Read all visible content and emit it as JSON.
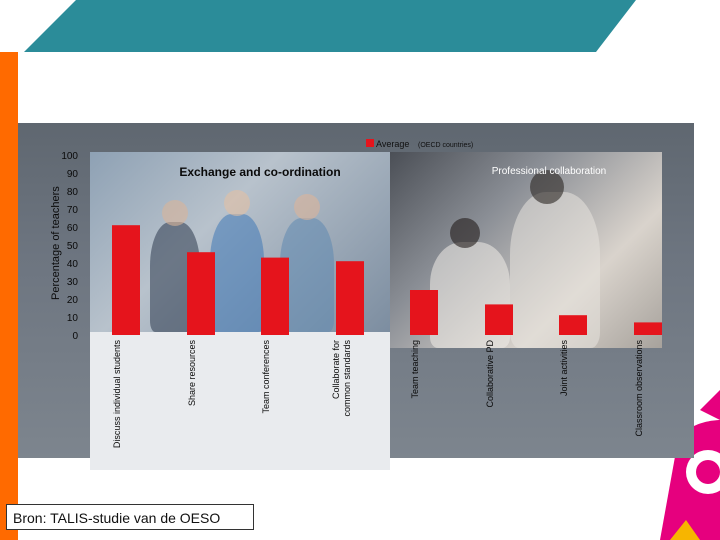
{
  "slide": {
    "source_text": "Bron: TALIS-studie van de OESO",
    "colors": {
      "top_band": "#2b8c99",
      "left_bar": "#ff6a00",
      "bar_fill": "#e5141c",
      "right_swoosh": [
        "#e6007e",
        "#f7b500",
        "#009fe3"
      ]
    }
  },
  "chart_data": {
    "type": "bar",
    "ylabel": "Percentage of teachers",
    "ylim": [
      0,
      100
    ],
    "yticks": [
      0,
      10,
      20,
      30,
      40,
      50,
      60,
      70,
      80,
      90,
      100
    ],
    "legend": {
      "label": "Average",
      "note": "(OECD countries)",
      "position": "top-right"
    },
    "group_labels": [
      "Exchange and co-ordination",
      "Professional collaboration"
    ],
    "categories": [
      "Discuss individual students",
      "Share resources",
      "Team conferences",
      "Collaborate for common standards",
      "Team teaching",
      "Collaborative PD",
      "Joint activities",
      "Classroom observations"
    ],
    "values": [
      61,
      46,
      43,
      41,
      25,
      17,
      11,
      7
    ],
    "grid": false,
    "bar_color": "#e5141c"
  }
}
